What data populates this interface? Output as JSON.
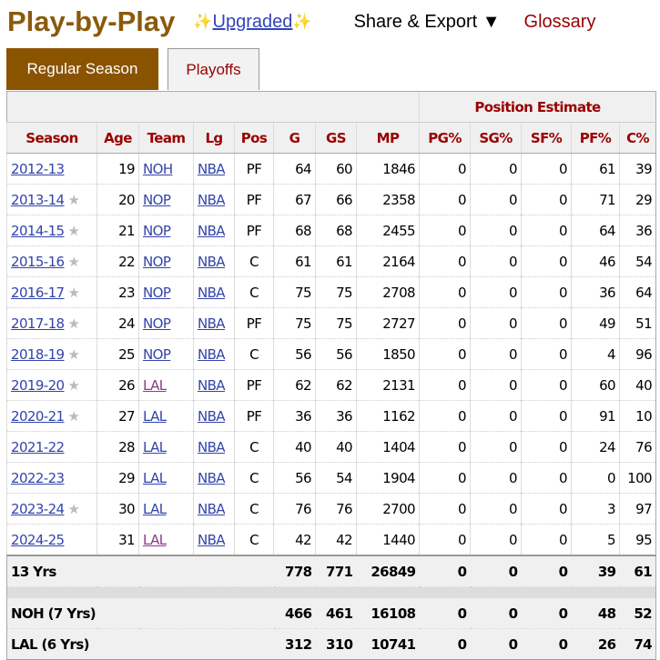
{
  "header": {
    "title": "Play-by-Play",
    "upgraded": "Upgraded",
    "share_export": "Share & Export ▼",
    "glossary": "Glossary"
  },
  "tabs": [
    {
      "label": "Regular Season",
      "active": true
    },
    {
      "label": "Playoffs",
      "active": false
    }
  ],
  "colors": {
    "accent": "#8a5300",
    "header_text": "#990000",
    "link": "#3344aa",
    "visited_link": "#8b3a8b"
  },
  "table": {
    "group_header": "Position Estimate",
    "columns": [
      "Season",
      "Age",
      "Team",
      "Lg",
      "Pos",
      "G",
      "GS",
      "MP",
      "PG%",
      "SG%",
      "SF%",
      "PF%",
      "C%"
    ],
    "rows": [
      {
        "season": "2012-13",
        "star": false,
        "age": "19",
        "team": "NOH",
        "team_visited": false,
        "lg": "NBA",
        "pos": "PF",
        "g": "64",
        "gs": "60",
        "mp": "1846",
        "pg": "0",
        "sg": "0",
        "sf": "0",
        "pf": "61",
        "c": "39"
      },
      {
        "season": "2013-14",
        "star": true,
        "age": "20",
        "team": "NOP",
        "team_visited": false,
        "lg": "NBA",
        "pos": "PF",
        "g": "67",
        "gs": "66",
        "mp": "2358",
        "pg": "0",
        "sg": "0",
        "sf": "0",
        "pf": "71",
        "c": "29"
      },
      {
        "season": "2014-15",
        "star": true,
        "age": "21",
        "team": "NOP",
        "team_visited": false,
        "lg": "NBA",
        "pos": "PF",
        "g": "68",
        "gs": "68",
        "mp": "2455",
        "pg": "0",
        "sg": "0",
        "sf": "0",
        "pf": "64",
        "c": "36"
      },
      {
        "season": "2015-16",
        "star": true,
        "age": "22",
        "team": "NOP",
        "team_visited": false,
        "lg": "NBA",
        "pos": "C",
        "g": "61",
        "gs": "61",
        "mp": "2164",
        "pg": "0",
        "sg": "0",
        "sf": "0",
        "pf": "46",
        "c": "54"
      },
      {
        "season": "2016-17",
        "star": true,
        "age": "23",
        "team": "NOP",
        "team_visited": false,
        "lg": "NBA",
        "pos": "C",
        "g": "75",
        "gs": "75",
        "mp": "2708",
        "pg": "0",
        "sg": "0",
        "sf": "0",
        "pf": "36",
        "c": "64"
      },
      {
        "season": "2017-18",
        "star": true,
        "age": "24",
        "team": "NOP",
        "team_visited": false,
        "lg": "NBA",
        "pos": "PF",
        "g": "75",
        "gs": "75",
        "mp": "2727",
        "pg": "0",
        "sg": "0",
        "sf": "0",
        "pf": "49",
        "c": "51"
      },
      {
        "season": "2018-19",
        "star": true,
        "age": "25",
        "team": "NOP",
        "team_visited": false,
        "lg": "NBA",
        "pos": "C",
        "g": "56",
        "gs": "56",
        "mp": "1850",
        "pg": "0",
        "sg": "0",
        "sf": "0",
        "pf": "4",
        "c": "96"
      },
      {
        "season": "2019-20",
        "star": true,
        "age": "26",
        "team": "LAL",
        "team_visited": true,
        "lg": "NBA",
        "pos": "PF",
        "g": "62",
        "gs": "62",
        "mp": "2131",
        "pg": "0",
        "sg": "0",
        "sf": "0",
        "pf": "60",
        "c": "40"
      },
      {
        "season": "2020-21",
        "star": true,
        "age": "27",
        "team": "LAL",
        "team_visited": false,
        "lg": "NBA",
        "pos": "PF",
        "g": "36",
        "gs": "36",
        "mp": "1162",
        "pg": "0",
        "sg": "0",
        "sf": "0",
        "pf": "91",
        "c": "10"
      },
      {
        "season": "2021-22",
        "star": false,
        "age": "28",
        "team": "LAL",
        "team_visited": false,
        "lg": "NBA",
        "pos": "C",
        "g": "40",
        "gs": "40",
        "mp": "1404",
        "pg": "0",
        "sg": "0",
        "sf": "0",
        "pf": "24",
        "c": "76"
      },
      {
        "season": "2022-23",
        "star": false,
        "age": "29",
        "team": "LAL",
        "team_visited": false,
        "lg": "NBA",
        "pos": "C",
        "g": "56",
        "gs": "54",
        "mp": "1904",
        "pg": "0",
        "sg": "0",
        "sf": "0",
        "pf": "0",
        "c": "100"
      },
      {
        "season": "2023-24",
        "star": true,
        "age": "30",
        "team": "LAL",
        "team_visited": false,
        "lg": "NBA",
        "pos": "C",
        "g": "76",
        "gs": "76",
        "mp": "2700",
        "pg": "0",
        "sg": "0",
        "sf": "0",
        "pf": "3",
        "c": "97"
      },
      {
        "season": "2024-25",
        "star": false,
        "age": "31",
        "team": "LAL",
        "team_visited": true,
        "lg": "NBA",
        "pos": "C",
        "g": "42",
        "gs": "42",
        "mp": "1440",
        "pg": "0",
        "sg": "0",
        "sf": "0",
        "pf": "5",
        "c": "95"
      }
    ],
    "career": {
      "label": "13 Yrs",
      "g": "778",
      "gs": "771",
      "mp": "26849",
      "pg": "0",
      "sg": "0",
      "sf": "0",
      "pf": "39",
      "c": "61"
    },
    "team_totals": [
      {
        "label": "NOH (7 Yrs)",
        "g": "466",
        "gs": "461",
        "mp": "16108",
        "pg": "0",
        "sg": "0",
        "sf": "0",
        "pf": "48",
        "c": "52"
      },
      {
        "label": "LAL (6 Yrs)",
        "g": "312",
        "gs": "310",
        "mp": "10741",
        "pg": "0",
        "sg": "0",
        "sf": "0",
        "pf": "26",
        "c": "74"
      }
    ]
  }
}
